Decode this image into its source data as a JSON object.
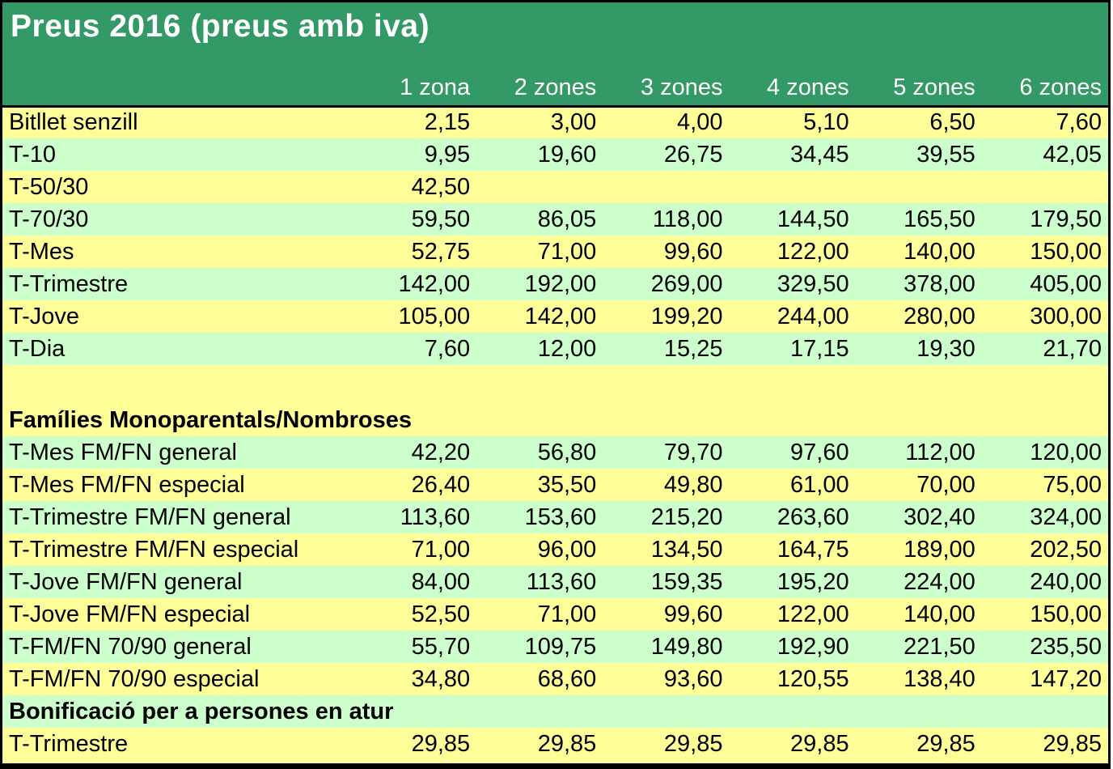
{
  "title": "Preus 2016 (preus amb iva)",
  "columns": [
    "1 zona",
    "2 zones",
    "3 zones",
    "4 zones",
    "5 zones",
    "6 zones"
  ],
  "rows": [
    {
      "label": "Bitllet senzill",
      "kind": "data",
      "band": "yellow",
      "values": [
        "2,15",
        "3,00",
        "4,00",
        "5,10",
        "6,50",
        "7,60"
      ]
    },
    {
      "label": "T-10",
      "kind": "data",
      "band": "green",
      "values": [
        "9,95",
        "19,60",
        "26,75",
        "34,45",
        "39,55",
        "42,05"
      ]
    },
    {
      "label": "T-50/30",
      "kind": "data",
      "band": "yellow",
      "values": [
        "42,50",
        "",
        "",
        "",
        "",
        ""
      ]
    },
    {
      "label": "T-70/30",
      "kind": "data",
      "band": "green",
      "values": [
        "59,50",
        "86,05",
        "118,00",
        "144,50",
        "165,50",
        "179,50"
      ]
    },
    {
      "label": "T-Mes",
      "kind": "data",
      "band": "yellow",
      "values": [
        "52,75",
        "71,00",
        "99,60",
        "122,00",
        "140,00",
        "150,00"
      ]
    },
    {
      "label": "T-Trimestre",
      "kind": "data",
      "band": "green",
      "values": [
        "142,00",
        "192,00",
        "269,00",
        "329,50",
        "378,00",
        "405,00"
      ]
    },
    {
      "label": "T-Jove",
      "kind": "data",
      "band": "yellow",
      "values": [
        "105,00",
        "142,00",
        "199,20",
        "244,00",
        "280,00",
        "300,00"
      ]
    },
    {
      "label": "T-Dia",
      "kind": "data",
      "band": "green",
      "values": [
        "7,60",
        "12,00",
        "15,25",
        "17,15",
        "19,30",
        "21,70"
      ]
    },
    {
      "label": "",
      "kind": "spacer",
      "band": "yellow",
      "values": [
        "",
        "",
        "",
        "",
        "",
        ""
      ]
    },
    {
      "label": "Famílies Monoparentals/Nombroses",
      "kind": "section",
      "band": "yellow",
      "values": [
        "",
        "",
        "",
        "",
        "",
        ""
      ]
    },
    {
      "label": "T-Mes FM/FN general",
      "kind": "data",
      "band": "green",
      "values": [
        "42,20",
        "56,80",
        "79,70",
        "97,60",
        "112,00",
        "120,00"
      ]
    },
    {
      "label": "T-Mes FM/FN especial",
      "kind": "data",
      "band": "yellow",
      "values": [
        "26,40",
        "35,50",
        "49,80",
        "61,00",
        "70,00",
        "75,00"
      ]
    },
    {
      "label": "T-Trimestre FM/FN general",
      "kind": "data",
      "band": "green",
      "values": [
        "113,60",
        "153,60",
        "215,20",
        "263,60",
        "302,40",
        "324,00"
      ]
    },
    {
      "label": "T-Trimestre FM/FN especial",
      "kind": "data",
      "band": "yellow",
      "values": [
        "71,00",
        "96,00",
        "134,50",
        "164,75",
        "189,00",
        "202,50"
      ]
    },
    {
      "label": "T-Jove FM/FN general",
      "kind": "data",
      "band": "green",
      "values": [
        "84,00",
        "113,60",
        "159,35",
        "195,20",
        "224,00",
        "240,00"
      ]
    },
    {
      "label": "T-Jove FM/FN especial",
      "kind": "data",
      "band": "yellow",
      "values": [
        "52,50",
        "71,00",
        "99,60",
        "122,00",
        "140,00",
        "150,00"
      ]
    },
    {
      "label": "T-FM/FN 70/90 general",
      "kind": "data",
      "band": "green",
      "values": [
        "55,70",
        "109,75",
        "149,80",
        "192,90",
        "221,50",
        "235,50"
      ]
    },
    {
      "label": "T-FM/FN 70/90 especial",
      "kind": "data",
      "band": "yellow",
      "values": [
        "34,80",
        "68,60",
        "93,60",
        "120,55",
        "138,40",
        "147,20"
      ]
    },
    {
      "label": "Bonificació per a persones en atur",
      "kind": "section",
      "band": "green",
      "values": [
        "",
        "",
        "",
        "",
        "",
        ""
      ]
    },
    {
      "label": "T-Trimestre",
      "kind": "data",
      "band": "yellow",
      "values": [
        "29,85",
        "29,85",
        "29,85",
        "29,85",
        "29,85",
        "29,85"
      ]
    }
  ],
  "colors": {
    "header_green": "#339966",
    "band_yellow": "#FFFF99",
    "band_green": "#CCFFCC",
    "border": "#000000",
    "title_text": "#FFFFFF"
  }
}
